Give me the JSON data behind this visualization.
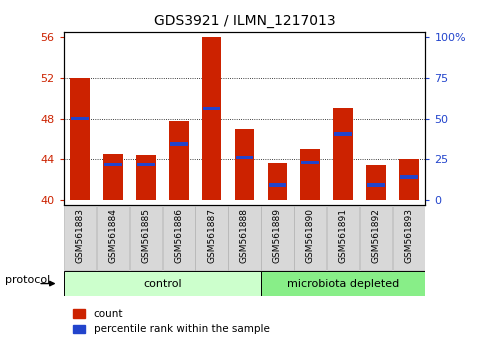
{
  "title": "GDS3921 / ILMN_1217013",
  "samples": [
    "GSM561883",
    "GSM561884",
    "GSM561885",
    "GSM561886",
    "GSM561887",
    "GSM561888",
    "GSM561889",
    "GSM561890",
    "GSM561891",
    "GSM561892",
    "GSM561893"
  ],
  "red_tops": [
    52.0,
    44.5,
    44.4,
    47.8,
    56.0,
    47.0,
    43.6,
    45.0,
    49.0,
    43.5,
    44.0
  ],
  "blue_tops": [
    48.0,
    43.5,
    43.5,
    45.5,
    49.0,
    44.2,
    41.5,
    43.7,
    46.5,
    41.5,
    42.3
  ],
  "baseline": 40.0,
  "ymin": 39.5,
  "ymax": 56.5,
  "yticks_left": [
    40,
    44,
    48,
    52,
    56
  ],
  "yticks_right_labels": [
    "0",
    "25",
    "50",
    "75",
    "100%"
  ],
  "yticks_right_vals": [
    0,
    25,
    50,
    75,
    100
  ],
  "bar_width": 0.6,
  "red_color": "#cc2200",
  "blue_color": "#2244cc",
  "n_control": 6,
  "n_micro": 5,
  "control_color": "#ccffcc",
  "microbiota_color": "#88ee88",
  "control_label": "control",
  "microbiota_label": "microbiota depleted",
  "protocol_label": "protocol",
  "legend_count": "count",
  "legend_percentile": "percentile rank within the sample",
  "tick_bg_color": "#d8d8d8",
  "grid_color": "black",
  "grid_linestyle": "dotted",
  "grid_linewidth": 0.6,
  "grid_yticks": [
    44,
    48,
    52
  ]
}
